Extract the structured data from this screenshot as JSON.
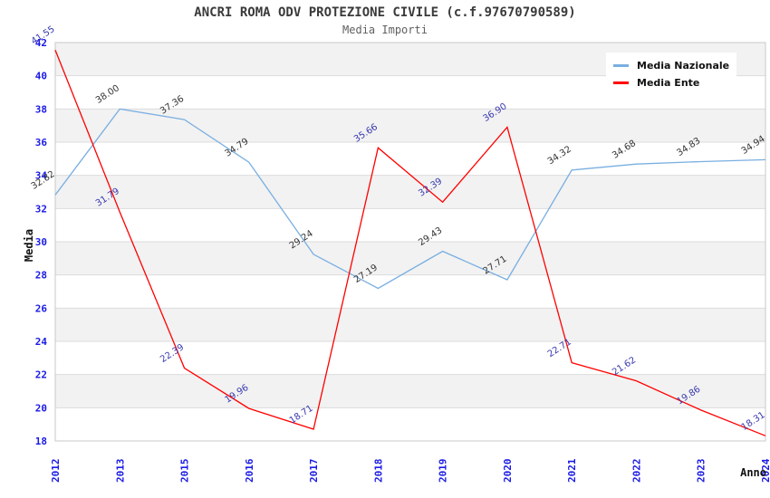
{
  "chart_data": {
    "type": "line",
    "title": "ANCRI ROMA ODV PROTEZIONE CIVILE (c.f.97670790589)",
    "subtitle": "Media Importi",
    "xlabel": "Anno",
    "ylabel": "Media",
    "categories": [
      "2012",
      "2013",
      "2015",
      "2016",
      "2017",
      "2018",
      "2019",
      "2020",
      "2021",
      "2022",
      "2023",
      "2024"
    ],
    "series": [
      {
        "name": "Media Nazionale",
        "color": "#79afe1",
        "label_color": "#333333",
        "values": [
          32.82,
          38.0,
          37.36,
          34.79,
          29.24,
          27.19,
          29.43,
          27.71,
          34.32,
          34.68,
          34.83,
          34.94
        ]
      },
      {
        "name": "Media Ente",
        "color": "#ff0000",
        "label_color": "#3939b0",
        "values": [
          41.55,
          31.79,
          22.39,
          19.96,
          18.71,
          35.66,
          32.39,
          36.9,
          22.71,
          21.62,
          19.86,
          18.31
        ]
      }
    ],
    "ylim": [
      18,
      42
    ],
    "ytick_step": 2,
    "value_label_decimals": 2,
    "legend_position": "top-right",
    "grid": "horizontal-bands"
  },
  "colors": {
    "background": "#ffffff",
    "band": "#f2f2f2",
    "gridline": "#dcdcdc",
    "plot_border": "#c8c8c8",
    "axis_tick_text": "#1a1ae6",
    "title_text": "#3a3a3a",
    "subtitle_text": "#606060",
    "axis_title_text": "#111111"
  }
}
